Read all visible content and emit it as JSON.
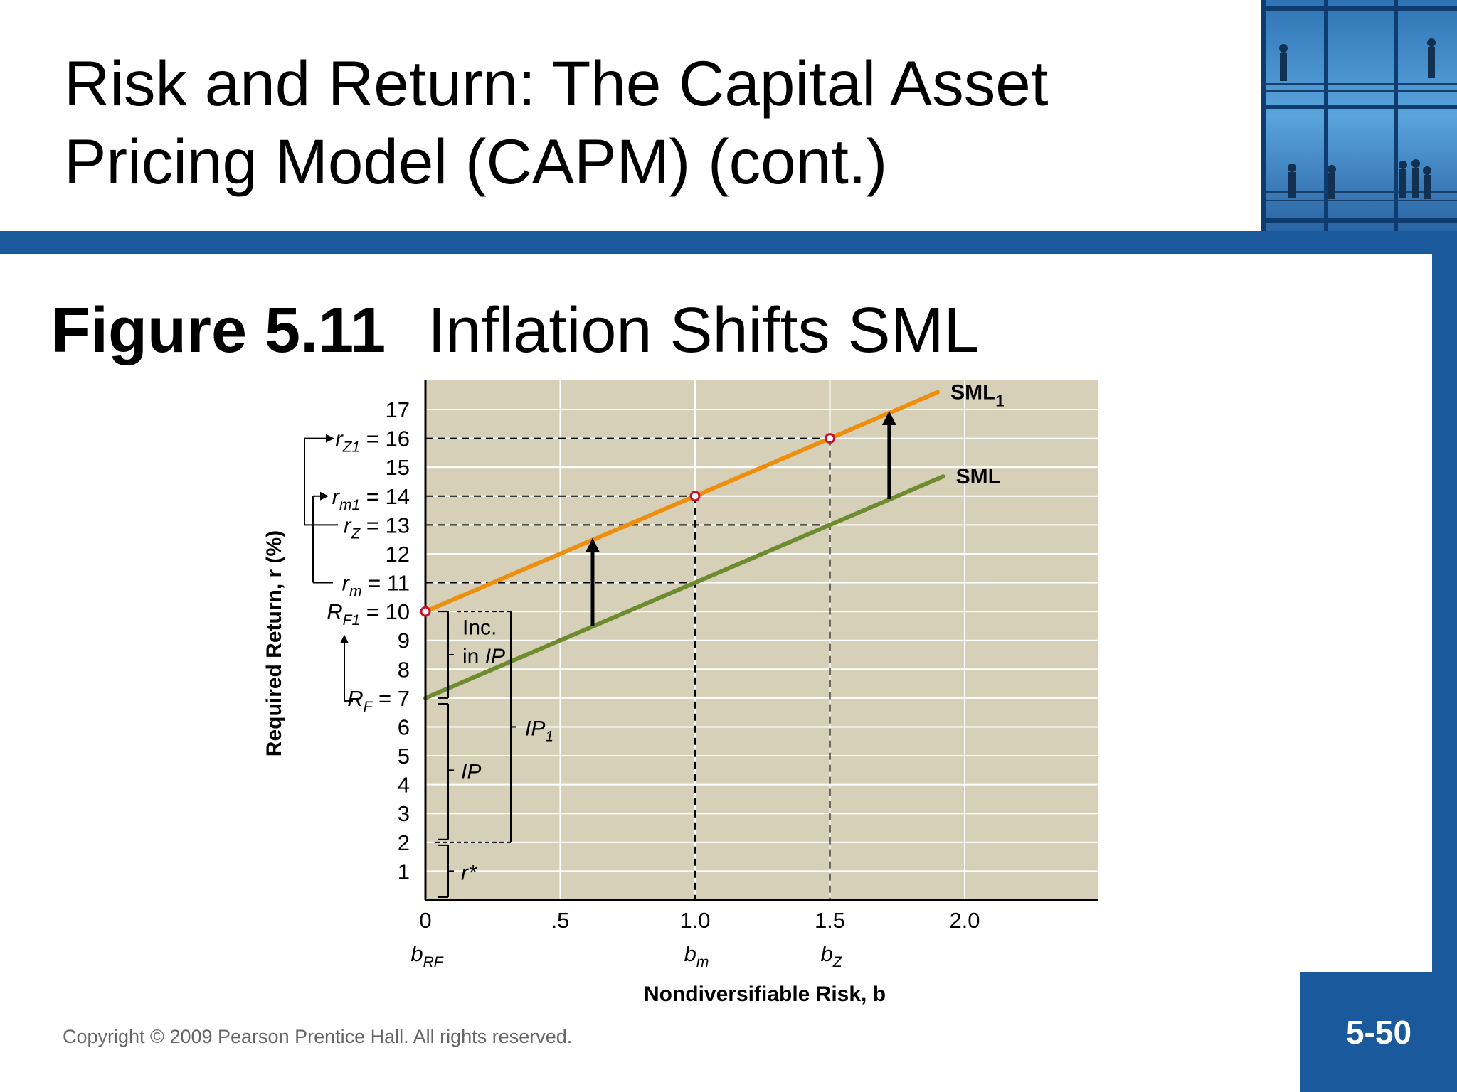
{
  "slide": {
    "title_line1": "Risk and Return: The Capital Asset",
    "title_line2": "Pricing Model (CAPM) (cont.)",
    "figure_number": "Figure 5.11",
    "figure_title": "Inflation Shifts SML",
    "copyright": "Copyright © 2009 Pearson Prentice Hall. All rights reserved.",
    "page_number": "5-50"
  },
  "colors": {
    "brand_blue": "#1a5a9c",
    "plot_background": "#d7d0b9",
    "sml1_line": "#ee8e0e",
    "sml_line": "#6e8c2f",
    "point_marker": "#c8102e"
  },
  "chart_data": {
    "type": "line",
    "xlabel": "Nondiversifiable Risk, b",
    "ylabel": "Required Return, r (%)",
    "xlim": [
      0,
      2.5
    ],
    "ylim": [
      0,
      18
    ],
    "grid": true,
    "x_ticks": [
      {
        "value": 0,
        "label": "0"
      },
      {
        "value": 0.5,
        "label": ".5"
      },
      {
        "value": 1.0,
        "label": "1.0"
      },
      {
        "value": 1.5,
        "label": "1.5"
      },
      {
        "value": 2.0,
        "label": "2.0"
      }
    ],
    "x_sublabels": [
      {
        "value": 0,
        "base": "b",
        "sub": "RF"
      },
      {
        "value": 1.0,
        "base": "b",
        "sub": "m"
      },
      {
        "value": 1.5,
        "base": "b",
        "sub": "Z"
      }
    ],
    "y_ticks": [
      {
        "value": 1,
        "label": "1"
      },
      {
        "value": 2,
        "label": "2"
      },
      {
        "value": 3,
        "label": "3"
      },
      {
        "value": 4,
        "label": "4"
      },
      {
        "value": 5,
        "label": "5"
      },
      {
        "value": 6,
        "label": "6"
      },
      {
        "value": 7,
        "label": "7",
        "prefix": "R",
        "sub": "F"
      },
      {
        "value": 8,
        "label": "8"
      },
      {
        "value": 9,
        "label": "9"
      },
      {
        "value": 10,
        "label": "10",
        "prefix": "R",
        "sub": "F1"
      },
      {
        "value": 11,
        "label": "11",
        "prefix": "r",
        "sub": "m"
      },
      {
        "value": 12,
        "label": "12"
      },
      {
        "value": 13,
        "label": "13",
        "prefix": "r",
        "sub": "Z"
      },
      {
        "value": 14,
        "label": "14",
        "prefix": "r",
        "sub": "m1"
      },
      {
        "value": 15,
        "label": "15"
      },
      {
        "value": 16,
        "label": "16",
        "prefix": "r",
        "sub": "Z1"
      },
      {
        "value": 17,
        "label": "17"
      }
    ],
    "series": [
      {
        "name": "SML",
        "name_sub": "1",
        "x": [
          0,
          1.9
        ],
        "y": [
          10,
          17.6
        ],
        "points": [
          [
            0,
            10
          ],
          [
            1.0,
            14
          ],
          [
            1.5,
            16
          ]
        ]
      },
      {
        "name": "SML",
        "name_sub": "",
        "x": [
          0,
          1.92
        ],
        "y": [
          7,
          14.68
        ],
        "points": []
      }
    ],
    "reference_lines": [
      {
        "y": 16,
        "x_end": 1.5
      },
      {
        "y": 14,
        "x_end": 1.0
      },
      {
        "y": 13,
        "x_end": 1.5
      },
      {
        "y": 11,
        "x_end": 1.0
      }
    ],
    "shift_arrows": [
      {
        "x": 0.62,
        "from": 9.5,
        "to": 12.5
      },
      {
        "x": 1.72,
        "from": 13.9,
        "to": 16.9
      }
    ],
    "annotations": {
      "inc_line1": "Inc.",
      "inc_line2": "in",
      "ip": "IP",
      "ip1_base": "IP",
      "ip1_sub": "1",
      "rstar": "r*"
    }
  }
}
